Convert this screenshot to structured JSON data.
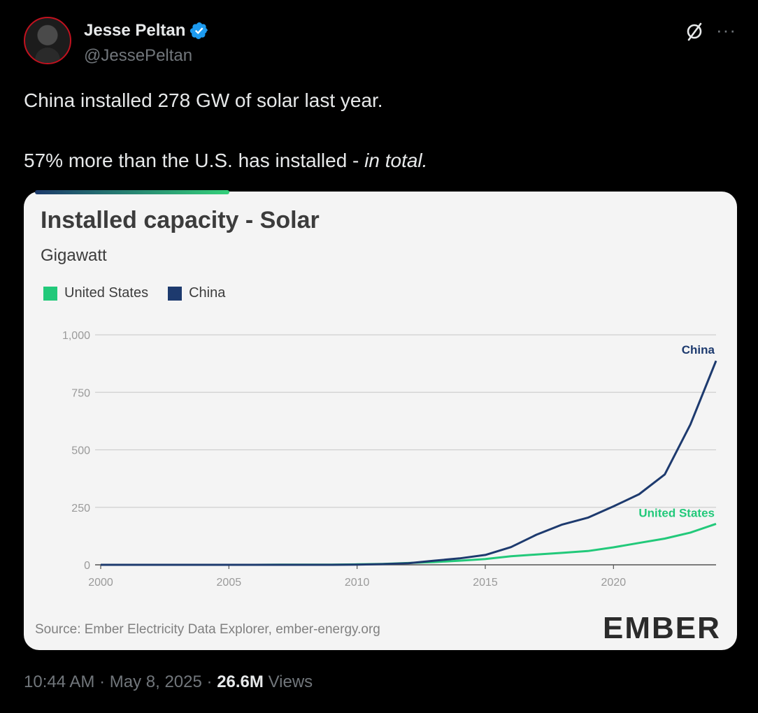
{
  "tweet": {
    "author_name": "Jesse Peltan",
    "author_handle": "@JessePeltan",
    "text_line1": "China installed 278 GW of solar last year.",
    "text_line2_prefix": "57% more than the U.S. has installed - ",
    "text_line2_emphasis": "in total.",
    "time": "10:44 AM",
    "date": "May 8, 2025",
    "views_count": "26.6M",
    "views_label": "Views"
  },
  "chart_data": {
    "type": "line",
    "title": "Installed capacity - Solar",
    "subtitle": "Gigawatt",
    "source": "Source: Ember Electricity Data Explorer, ember-energy.org",
    "logo": "EMBER",
    "x": [
      2000,
      2001,
      2002,
      2003,
      2004,
      2005,
      2006,
      2007,
      2008,
      2009,
      2010,
      2011,
      2012,
      2013,
      2014,
      2015,
      2016,
      2017,
      2018,
      2019,
      2020,
      2021,
      2022,
      2023,
      2024
    ],
    "xticks": [
      "2000",
      "2005",
      "2010",
      "2015",
      "2020"
    ],
    "yticks": [
      "0",
      "250",
      "500",
      "750",
      "1,000"
    ],
    "ylim": [
      0,
      1000
    ],
    "xlim": [
      2000,
      2024
    ],
    "grid": true,
    "legend_position": "top-left",
    "series": [
      {
        "name": "United States",
        "color": "#22c97a",
        "values": [
          0,
          0,
          0,
          0,
          0,
          0,
          0,
          1,
          1,
          1,
          2,
          4,
          8,
          12,
          18,
          25,
          37,
          45,
          52,
          60,
          76,
          95,
          114,
          140,
          178
        ]
      },
      {
        "name": "China",
        "color": "#1d3a6e",
        "values": [
          0,
          0,
          0,
          0,
          0,
          0,
          0,
          0,
          0,
          0,
          1,
          3,
          7,
          18,
          28,
          43,
          77,
          131,
          175,
          205,
          254,
          307,
          393,
          610,
          887
        ]
      }
    ]
  }
}
